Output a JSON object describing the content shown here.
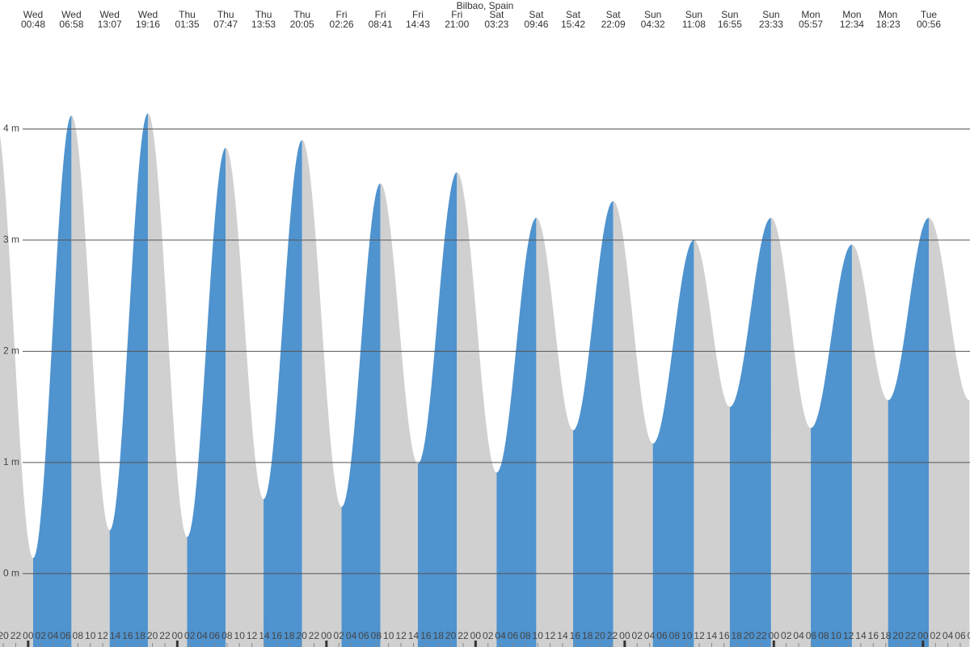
{
  "chart_data": {
    "type": "tide",
    "title": "Bilbao, Spain",
    "extremes": [
      {
        "day": "Wed",
        "time": "00:48",
        "height": 0.14
      },
      {
        "day": "Wed",
        "time": "06:58",
        "height": 4.12
      },
      {
        "day": "Wed",
        "time": "13:07",
        "height": 0.39
      },
      {
        "day": "Wed",
        "time": "19:16",
        "height": 4.14
      },
      {
        "day": "Thu",
        "time": "01:35",
        "height": 0.33
      },
      {
        "day": "Thu",
        "time": "07:47",
        "height": 3.83
      },
      {
        "day": "Thu",
        "time": "13:53",
        "height": 0.67
      },
      {
        "day": "Thu",
        "time": "20:05",
        "height": 3.9
      },
      {
        "day": "Fri",
        "time": "02:26",
        "height": 0.6
      },
      {
        "day": "Fri",
        "time": "08:41",
        "height": 3.51
      },
      {
        "day": "Fri",
        "time": "14:43",
        "height": 0.99
      },
      {
        "day": "Fri",
        "time": "21:00",
        "height": 3.61
      },
      {
        "day": "Sat",
        "time": "03:23",
        "height": 0.91
      },
      {
        "day": "Sat",
        "time": "09:46",
        "height": 3.2
      },
      {
        "day": "Sat",
        "time": "15:42",
        "height": 1.29
      },
      {
        "day": "Sat",
        "time": "22:09",
        "height": 3.35
      },
      {
        "day": "Sun",
        "time": "04:32",
        "height": 1.17
      },
      {
        "day": "Sun",
        "time": "11:08",
        "height": 3.0
      },
      {
        "day": "Sun",
        "time": "16:55",
        "height": 1.5
      },
      {
        "day": "Sun",
        "time": "23:33",
        "height": 3.2
      },
      {
        "day": "Mon",
        "time": "05:57",
        "height": 1.31
      },
      {
        "day": "Mon",
        "time": "12:34",
        "height": 2.96
      },
      {
        "day": "Mon",
        "time": "18:23",
        "height": 1.56
      },
      {
        "day": "Tue",
        "time": "00:56",
        "height": 3.2
      }
    ],
    "ylim": [
      -0.66,
      5.16
    ],
    "yticks": [
      {
        "value": 0,
        "label": "0 m"
      },
      {
        "value": 1,
        "label": "1 m"
      },
      {
        "value": 2,
        "label": "2 m"
      },
      {
        "value": 3,
        "label": "3 m"
      },
      {
        "value": 4,
        "label": "4 m"
      }
    ],
    "hour_labels": [
      "00",
      "02",
      "04",
      "06",
      "08",
      "10",
      "12",
      "14",
      "16",
      "18",
      "20",
      "22"
    ],
    "colors": {
      "rising": "#4f93cf",
      "falling": "#d0d0d0"
    },
    "grid": true
  }
}
